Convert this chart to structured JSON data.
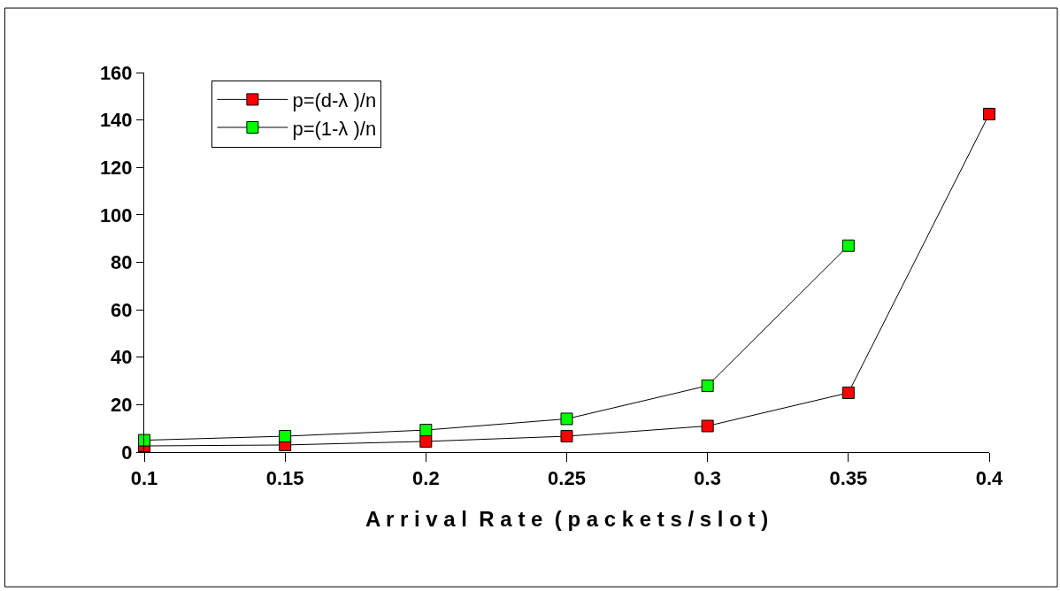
{
  "chart_data": {
    "type": "line",
    "xlabel": "A r r i v a l  R a t e  ( p a c k e t s / s l o t )",
    "x": [
      0.1,
      0.15,
      0.2,
      0.25,
      0.3,
      0.35,
      0.4
    ],
    "series": [
      {
        "name": "p=(d-λ )/n",
        "color": "#ff0000",
        "values": [
          2.6,
          3,
          4.5,
          6.7,
          11,
          25,
          142.5
        ]
      },
      {
        "name": "p=(1-λ )/n",
        "color": "#00ff00",
        "values": [
          5,
          6.7,
          9.3,
          14,
          28,
          87,
          null
        ]
      }
    ],
    "xlim": [
      0.1,
      0.4
    ],
    "xticks": [
      0.1,
      0.15,
      0.2,
      0.25,
      0.3,
      0.35,
      0.4
    ],
    "ylim": [
      0,
      160
    ],
    "yticks": [
      0,
      20,
      40,
      60,
      80,
      100,
      120,
      140,
      160
    ],
    "legend": "top left",
    "marker": "square",
    "line_style": "solid"
  }
}
